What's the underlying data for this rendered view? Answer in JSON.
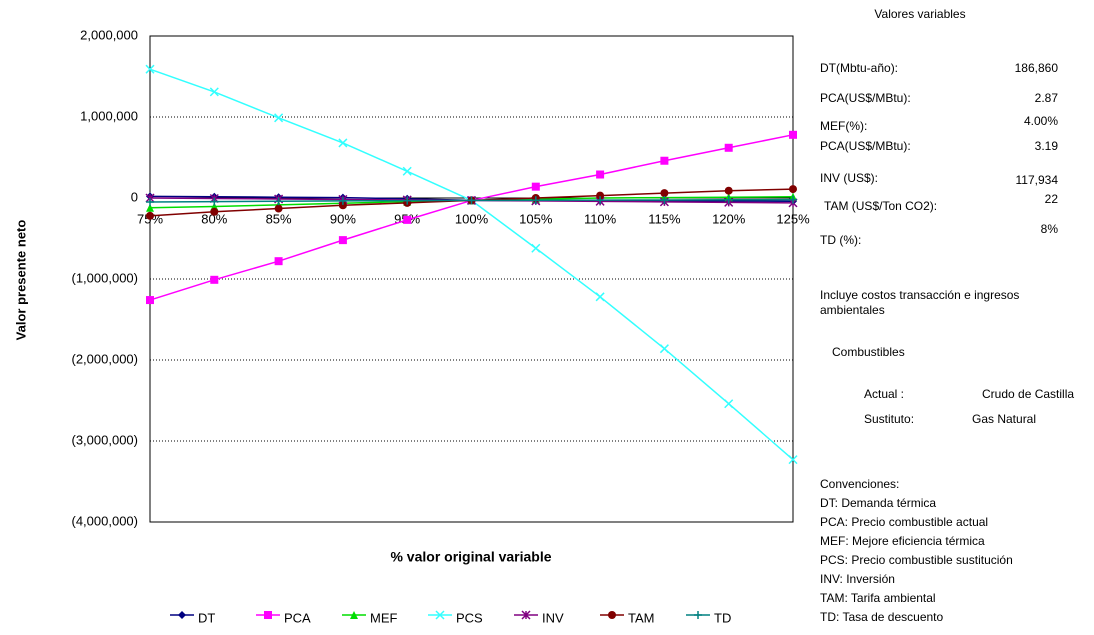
{
  "chart_data": {
    "type": "line",
    "x_label": "% valor original variable",
    "y_label": "Valor presente neto",
    "categories": [
      "75%",
      "80%",
      "85%",
      "90%",
      "95%",
      "100%",
      "105%",
      "110%",
      "115%",
      "120%",
      "125%"
    ],
    "series": [
      {
        "name": "DT",
        "color": "#000080",
        "marker": "diamond",
        "values": [
          20000,
          15000,
          10000,
          5000,
          -10000,
          -30000,
          -32000,
          -34000,
          -36000,
          -38000,
          -40000
        ]
      },
      {
        "name": "PCA",
        "color": "#ff00ff",
        "marker": "square",
        "values": [
          -1260000,
          -1010000,
          -780000,
          -520000,
          -270000,
          -30000,
          140000,
          290000,
          460000,
          620000,
          780000
        ]
      },
      {
        "name": "MEF",
        "color": "#00dd00",
        "marker": "triangle",
        "values": [
          -120000,
          -105000,
          -85000,
          -65000,
          -45000,
          -30000,
          -15000,
          0,
          5000,
          10000,
          15000
        ]
      },
      {
        "name": "PCS",
        "color": "#33ffff",
        "marker": "x",
        "values": [
          1590000,
          1310000,
          990000,
          680000,
          330000,
          -30000,
          -620000,
          -1220000,
          -1860000,
          -2540000,
          -3230000
        ]
      },
      {
        "name": "INV",
        "color": "#800080",
        "marker": "star",
        "values": [
          0,
          -6000,
          -12000,
          -18000,
          -24000,
          -30000,
          -36000,
          -42000,
          -48000,
          -54000,
          -60000
        ]
      },
      {
        "name": "TAM",
        "color": "#800000",
        "marker": "circle",
        "values": [
          -220000,
          -170000,
          -130000,
          -90000,
          -60000,
          -30000,
          0,
          30000,
          60000,
          90000,
          110000
        ]
      },
      {
        "name": "TD",
        "color": "#008080",
        "marker": "plus",
        "values": [
          -50000,
          -45000,
          -40000,
          -36000,
          -33000,
          -30000,
          -28000,
          -26000,
          -24000,
          -22000,
          -20000
        ]
      }
    ],
    "ylim": [
      -4000000,
      2000000
    ],
    "yticks": [
      {
        "value": -4000000,
        "label": "(4,000,000)"
      },
      {
        "value": -3000000,
        "label": "(3,000,000)"
      },
      {
        "value": -2000000,
        "label": "(2,000,000)"
      },
      {
        "value": -1000000,
        "label": "(1,000,000)"
      },
      0,
      {
        "value": 1000000,
        "label": "1,000,000"
      },
      {
        "value": 2000000,
        "label": "2,000,000"
      }
    ],
    "grid": true,
    "legend": "bottom"
  },
  "panel": {
    "title": "Valores variables",
    "rows": [
      [
        "DT(Mbtu-año):",
        "186,860"
      ],
      [
        "PCA(US$/MBtu):",
        "2.87"
      ],
      [
        "MEF(%):",
        "4.00%"
      ],
      [
        "PCA(US$/MBtu):",
        "3.19"
      ],
      [
        "INV (US$):",
        "117,934"
      ],
      [
        "TAM  (US$/Ton CO2):",
        "22"
      ],
      [
        "TD (%):",
        "8%"
      ]
    ],
    "note": [
      "Incluye costos transacción e ingresos",
      "ambientales"
    ],
    "fuels_title": "Combustibles",
    "fuels": [
      [
        "Actual :",
        "Crudo de Castilla"
      ],
      [
        "Sustituto:",
        "Gas Natural"
      ]
    ],
    "conventions": [
      "Convenciones:",
      "DT: Demanda térmica",
      "PCA: Precio combustible actual",
      "MEF: Mejore eficiencia térmica",
      "PCS:  Precio combustible sustitución",
      "INV:  Inversión",
      "TAM: Tarifa ambiental",
      "TD: Tasa de descuento"
    ]
  }
}
